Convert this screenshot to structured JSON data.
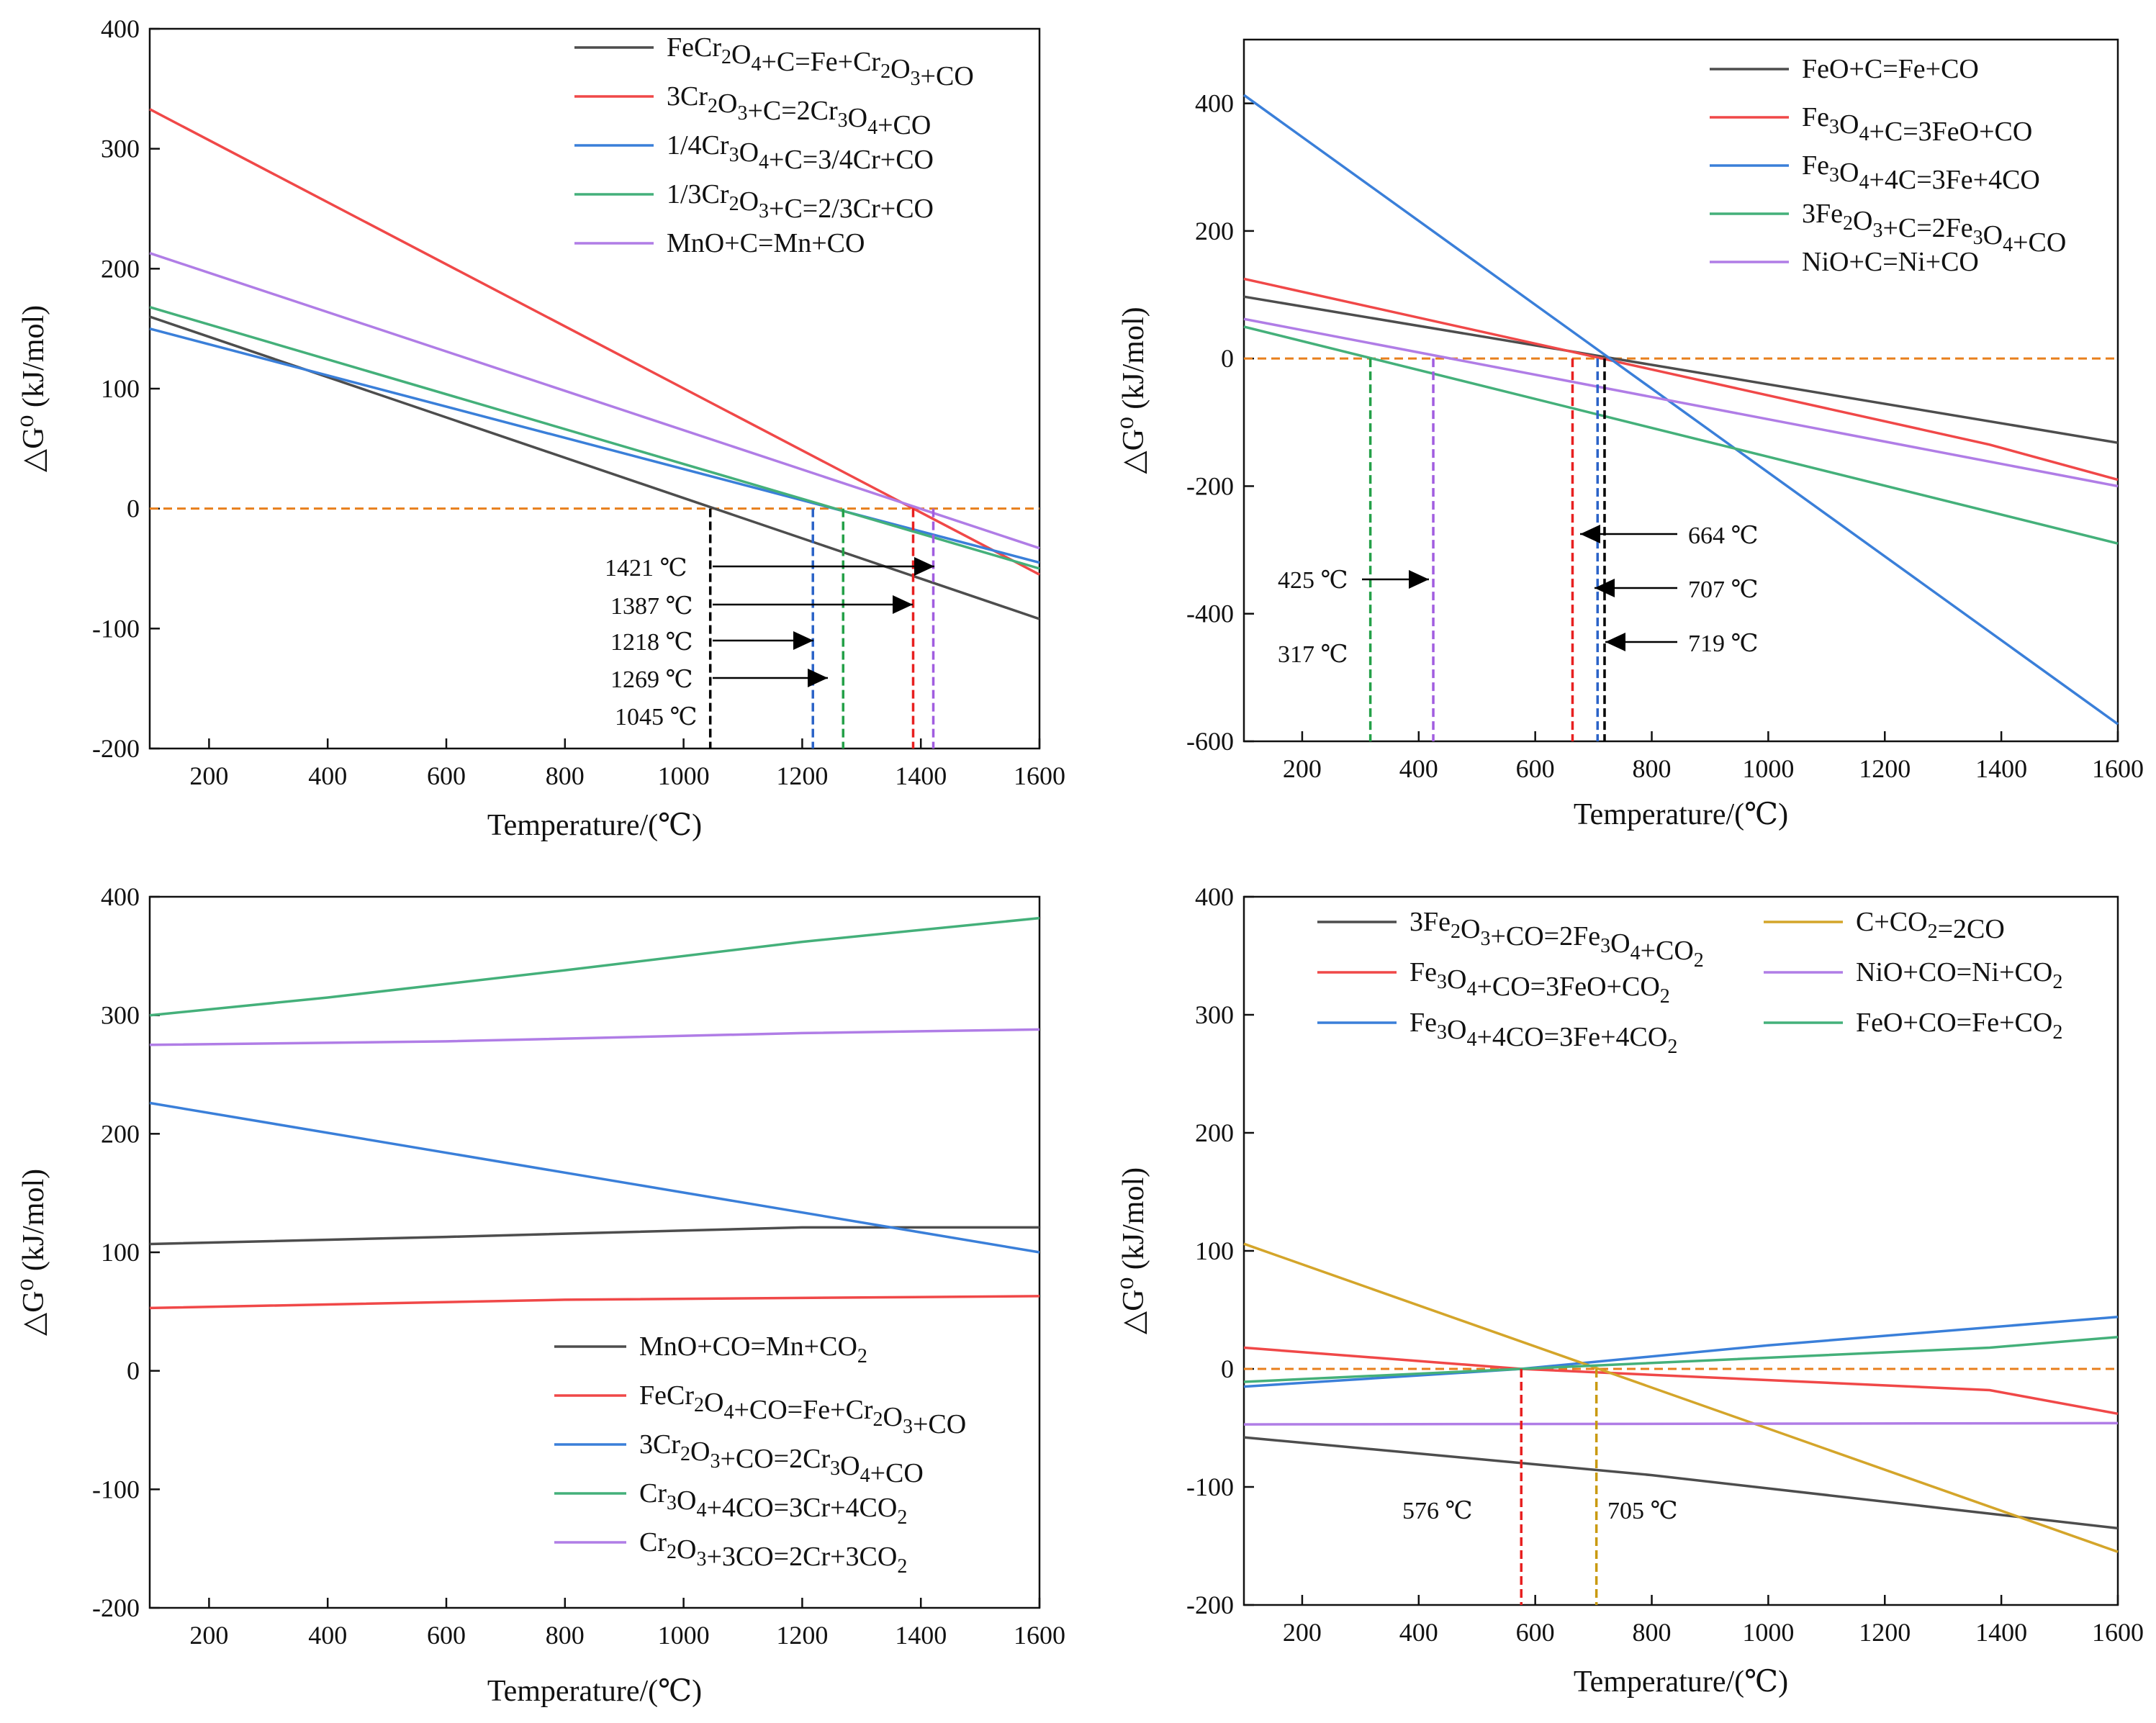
{
  "colors": {
    "black": "#4d4d4d",
    "red": "#f04848",
    "blue": "#3a7fd9",
    "green": "#44b07a",
    "purple": "#b07de6",
    "orange": "#e87f1c",
    "gold": "#d4a52a",
    "annot_black": "#000000",
    "annot_red": "#e82020",
    "annot_blue": "#2b63c8",
    "annot_green": "#24a048",
    "annot_purple": "#a15de0"
  },
  "chart_data": [
    {
      "id": "a",
      "type": "line",
      "xlabel": "Temperature/(℃)",
      "ylabel": "△G⁰ (kJ/mol)",
      "xlim": [
        100,
        1600
      ],
      "ylim": [
        -200,
        400
      ],
      "xticks": [
        200,
        400,
        600,
        800,
        1000,
        1200,
        1400,
        1600
      ],
      "yticks": [
        -200,
        -100,
        0,
        100,
        200,
        300,
        400
      ],
      "legend_position": "top-right",
      "series": [
        {
          "name": "FeCr2O4+C=Fe+Cr2O3+CO",
          "color": "black",
          "x": [
            100,
            1600
          ],
          "y": [
            160,
            -92
          ]
        },
        {
          "name": "3Cr2O3+C=2Cr3O4+CO",
          "color": "red",
          "x": [
            100,
            1600
          ],
          "y": [
            333,
            -55
          ]
        },
        {
          "name": "1/4Cr3O4+C=3/4Cr+CO",
          "color": "blue",
          "x": [
            100,
            1600
          ],
          "y": [
            150,
            -45
          ]
        },
        {
          "name": "1/3Cr2O3+C=2/3Cr+CO",
          "color": "green",
          "x": [
            100,
            1600
          ],
          "y": [
            168,
            -50
          ]
        },
        {
          "name": "MnO+C=Mn+CO",
          "color": "purple",
          "x": [
            100,
            1600
          ],
          "y": [
            213,
            -33
          ]
        }
      ],
      "reference_line": {
        "y": 0,
        "color": "orange"
      },
      "annotations": [
        {
          "label": "1421 ℃",
          "x": 1421,
          "arrow": "right",
          "color": "annot_purple"
        },
        {
          "label": "1387 ℃",
          "x": 1387,
          "arrow": "right",
          "color": "annot_red"
        },
        {
          "label": "1218 ℃",
          "x": 1218,
          "arrow": "right",
          "color": "annot_blue"
        },
        {
          "label": "1269 ℃",
          "x": 1269,
          "arrow": "right",
          "color": "annot_green"
        },
        {
          "label": "1045 ℃",
          "x": 1045,
          "arrow": "none",
          "color": "annot_black"
        }
      ]
    },
    {
      "id": "b",
      "type": "line",
      "xlabel": "Temperature/(℃)",
      "ylabel": "△G⁰ (kJ/mol)",
      "xlim": [
        100,
        1600
      ],
      "ylim": [
        -600,
        500
      ],
      "xticks": [
        200,
        400,
        600,
        800,
        1000,
        1200,
        1400,
        1600
      ],
      "yticks": [
        -600,
        -400,
        -200,
        0,
        200,
        400
      ],
      "legend_position": "top-right",
      "series": [
        {
          "name": "FeO+C=Fe+CO",
          "color": "black",
          "x": [
            100,
            1600
          ],
          "y": [
            97,
            -132
          ]
        },
        {
          "name": "Fe3O4+C=3FeO+CO",
          "color": "red",
          "x": [
            100,
            1380,
            1600
          ],
          "y": [
            125,
            -135,
            -190
          ]
        },
        {
          "name": "Fe3O4+4C=3Fe+4CO",
          "color": "blue",
          "x": [
            100,
            1600
          ],
          "y": [
            413,
            -573
          ]
        },
        {
          "name": "3Fe2O3+C=2Fe3O4+CO",
          "color": "green",
          "x": [
            100,
            1600
          ],
          "y": [
            50,
            -290
          ]
        },
        {
          "name": "NiO+C=Ni+CO",
          "color": "purple",
          "x": [
            100,
            1600
          ],
          "y": [
            62,
            -200
          ]
        }
      ],
      "reference_line": {
        "y": 0,
        "color": "orange"
      },
      "annotations": [
        {
          "label": "664 ℃",
          "x": 664,
          "arrow": "left",
          "color": "annot_red"
        },
        {
          "label": "707 ℃",
          "x": 707,
          "arrow": "left",
          "color": "annot_blue"
        },
        {
          "label": "719 ℃",
          "x": 719,
          "arrow": "left",
          "color": "annot_black"
        },
        {
          "label": "425 ℃",
          "x": 425,
          "arrow": "right",
          "color": "annot_purple"
        },
        {
          "label": "317 ℃",
          "x": 317,
          "arrow": "none",
          "color": "annot_green"
        }
      ]
    },
    {
      "id": "c",
      "type": "line",
      "xlabel": "Temperature/(℃)",
      "ylabel": "△G⁰ (kJ/mol)",
      "xlim": [
        100,
        1600
      ],
      "ylim": [
        -200,
        400
      ],
      "xticks": [
        200,
        400,
        600,
        800,
        1000,
        1200,
        1400,
        1600
      ],
      "yticks": [
        -200,
        -100,
        0,
        100,
        200,
        300,
        400
      ],
      "legend_position": "bottom-right",
      "series": [
        {
          "name": "MnO+CO=Mn+CO2",
          "color": "black",
          "x": [
            100,
            600,
            1200,
            1600
          ],
          "y": [
            107,
            113,
            121,
            121
          ]
        },
        {
          "name": "FeCr2O4+CO=Fe+Cr2O3+CO",
          "color": "red",
          "x": [
            100,
            800,
            1600
          ],
          "y": [
            53,
            60,
            63
          ]
        },
        {
          "name": "3Cr2O3+CO=2Cr3O4+CO",
          "color": "blue",
          "x": [
            100,
            1600
          ],
          "y": [
            226,
            100
          ]
        },
        {
          "name": "Cr3O4+4CO=3Cr+4CO2",
          "color": "green",
          "x": [
            100,
            400,
            800,
            1200,
            1600
          ],
          "y": [
            300,
            315,
            338,
            362,
            382
          ]
        },
        {
          "name": "Cr2O3+3CO=2Cr+3CO2",
          "color": "purple",
          "x": [
            100,
            600,
            1200,
            1600
          ],
          "y": [
            275,
            278,
            285,
            288
          ]
        }
      ]
    },
    {
      "id": "d",
      "type": "line",
      "xlabel": "Temperature/(℃)",
      "ylabel": "△G⁰ (kJ/mol)",
      "xlim": [
        100,
        1600
      ],
      "ylim": [
        -200,
        400
      ],
      "xticks": [
        200,
        400,
        600,
        800,
        1000,
        1200,
        1400,
        1600
      ],
      "yticks": [
        -200,
        -100,
        0,
        100,
        200,
        300,
        400
      ],
      "legend_position": "top",
      "series": [
        {
          "name": "3Fe2O3+CO=2Fe3O4+CO2",
          "color": "black",
          "x": [
            100,
            800,
            1600
          ],
          "y": [
            -58,
            -90,
            -135
          ]
        },
        {
          "name": "Fe3O4+CO=3FeO+CO2",
          "color": "red",
          "x": [
            100,
            576,
            1380,
            1600
          ],
          "y": [
            18,
            0,
            -18,
            -38
          ]
        },
        {
          "name": "Fe3O4+4CO=3Fe+4CO2",
          "color": "blue",
          "x": [
            100,
            576,
            1000,
            1600
          ],
          "y": [
            -15,
            0,
            20,
            44
          ]
        },
        {
          "name": "C+CO2=2CO",
          "color": "gold",
          "x": [
            100,
            1600
          ],
          "y": [
            106,
            -155
          ]
        },
        {
          "name": "NiO+CO=Ni+CO2",
          "color": "purple",
          "x": [
            100,
            1600
          ],
          "y": [
            -47,
            -46
          ]
        },
        {
          "name": "FeO+CO=Fe+CO2",
          "color": "green",
          "x": [
            100,
            576,
            1380,
            1600
          ],
          "y": [
            -11,
            0,
            18,
            27
          ]
        }
      ],
      "reference_line": {
        "y": 0,
        "color": "orange"
      },
      "annotations": [
        {
          "label": "576 ℃",
          "x": 576,
          "arrow": "none",
          "color": "annot_red"
        },
        {
          "label": "705 ℃",
          "x": 705,
          "arrow": "none",
          "color": "annot_gold"
        }
      ]
    }
  ]
}
